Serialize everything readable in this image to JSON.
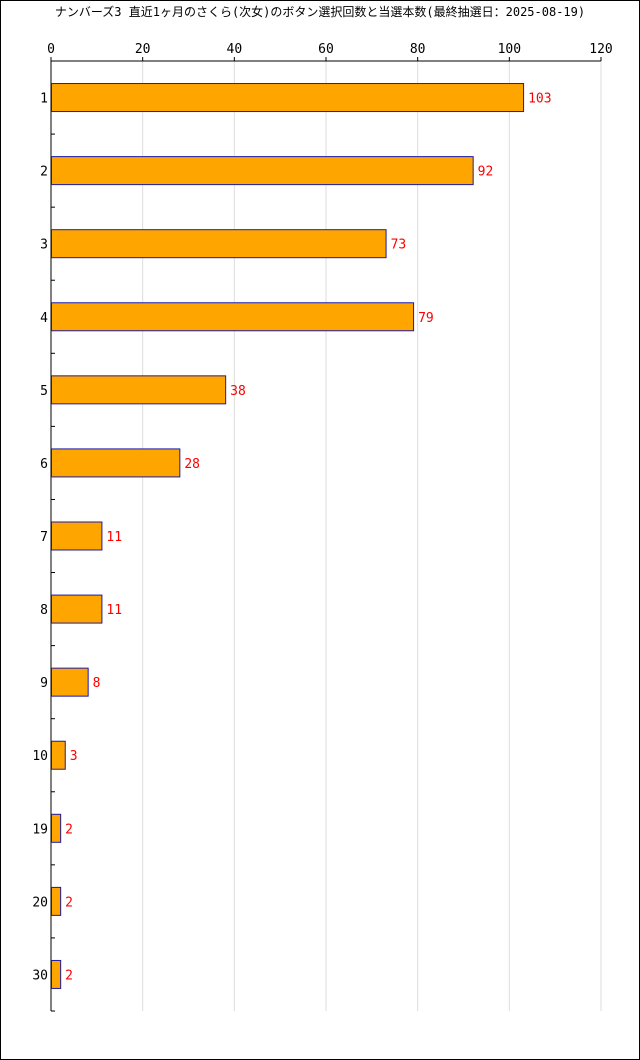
{
  "chart_data": {
    "type": "bar",
    "orientation": "horizontal",
    "title": "ナンバーズ3 直近1ヶ月のさくら(次女)のボタン選択回数と当選本数(最終抽選日：2025-08-19)",
    "xlabel": "",
    "ylabel": "",
    "xlim": [
      0,
      120
    ],
    "x_ticks": [
      "0",
      "20",
      "40",
      "60",
      "80",
      "100",
      "120"
    ],
    "grid": "vertical",
    "legend": "none",
    "categories": [
      "1",
      "2",
      "3",
      "4",
      "5",
      "6",
      "7",
      "8",
      "9",
      "10",
      "19",
      "20",
      "30"
    ],
    "values": [
      103,
      92,
      73,
      79,
      38,
      28,
      11,
      11,
      8,
      3,
      2,
      2,
      2
    ],
    "data_labels": [
      "103",
      "92",
      "73",
      "79",
      "38",
      "28",
      "11",
      "11",
      "8",
      "3",
      "2",
      "2",
      "2"
    ],
    "colors": {
      "bar_fill": "#ffa500",
      "bar_stroke": "#1a1aa8",
      "data_label": "#ff0000",
      "grid": "#dddddd",
      "axis": "#000000"
    }
  }
}
